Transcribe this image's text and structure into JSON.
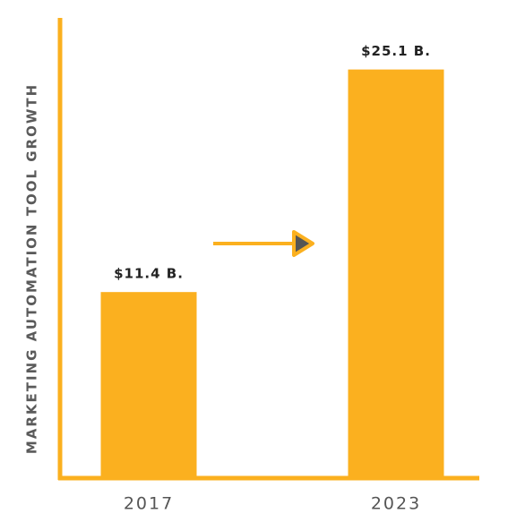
{
  "chart_data": {
    "type": "bar",
    "y_label": "MARKETING AUTOMATION TOOL GROWTH",
    "categories": [
      "2017",
      "2023"
    ],
    "values": [
      11.4,
      25.1
    ],
    "value_labels": [
      "$11.4 B.",
      "$25.1 B."
    ],
    "color": "#fbb01f",
    "ylim": [
      0,
      28
    ],
    "grid": false
  }
}
